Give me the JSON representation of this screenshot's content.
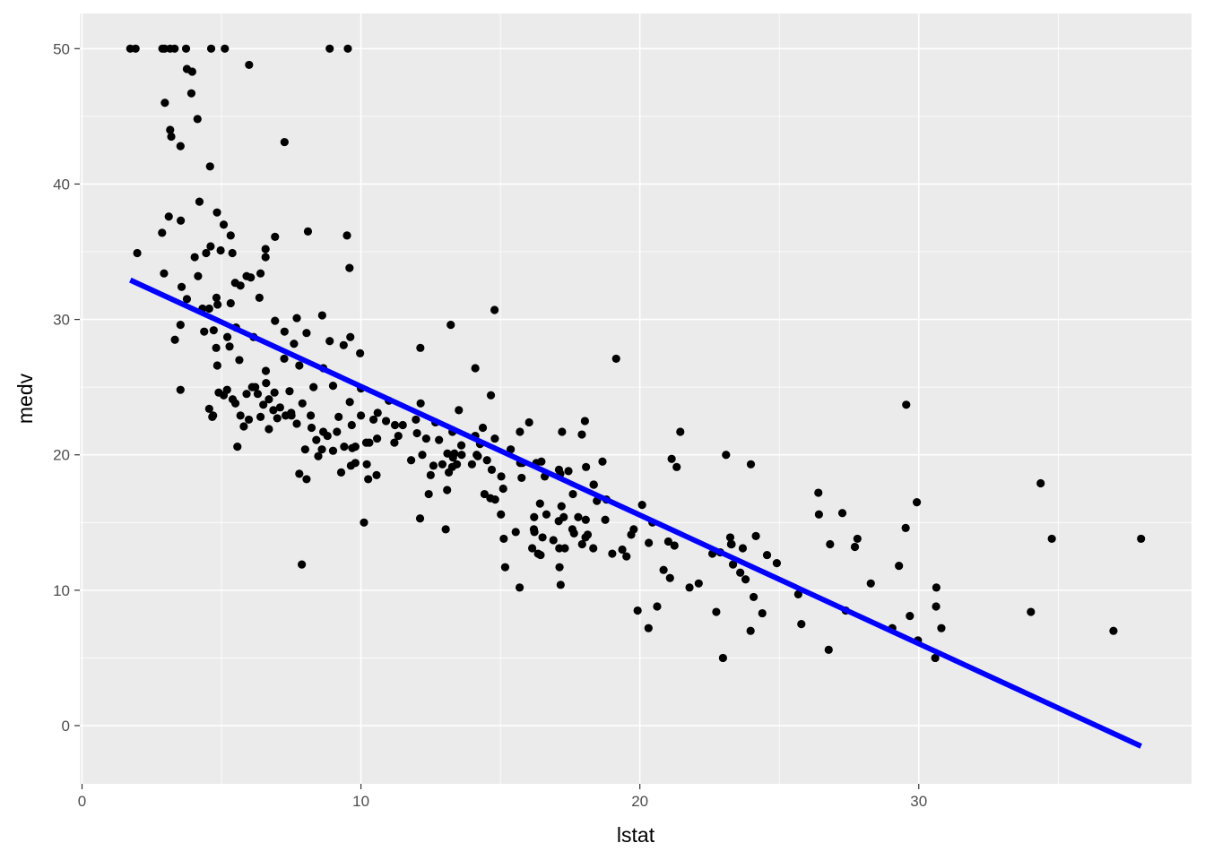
{
  "chart_data": {
    "type": "scatter",
    "x_label": "lstat",
    "y_label": "medv",
    "color": "#000000",
    "x": [
      1.73,
      1.92,
      2.88,
      2.96,
      3.16,
      3.32,
      3.73,
      4.63,
      5.12,
      8.88,
      9.53,
      5.99,
      3.76,
      3.95,
      3.92,
      2.97,
      4.14,
      3.16,
      3.2,
      3.53,
      7.26,
      4.59,
      4.21,
      4.84,
      3.11,
      3.54,
      5.08,
      2.87,
      5.33,
      6.92,
      8.1,
      9.5,
      4.61,
      4.97,
      6.58,
      1.98,
      4.45,
      5.39,
      6.58,
      4.04,
      9.59,
      2.94,
      4.16,
      5.9,
      6.4,
      6.05,
      5.68,
      5.49,
      3.57,
      6.36,
      3.76,
      4.82,
      4.56,
      5.33,
      4.86,
      4.32,
      8.61,
      14.79,
      13.22,
      6.92,
      7.7,
      3.53,
      5.52,
      4.38,
      6.15,
      7.26,
      8.05,
      4.72,
      3.33,
      9.62,
      12.13,
      5.21,
      9.97,
      7.6,
      4.81,
      5.29,
      8.88,
      9.38,
      5.64,
      7.25,
      14.1,
      4.85,
      6.59,
      7.79,
      8.65,
      19.15,
      3.53,
      4.67,
      5.5,
      5.98,
      4.56,
      5.08,
      5.68,
      5.57,
      6.21,
      6.86,
      7.44,
      7.51,
      8.23,
      7.79,
      8.05,
      7.88,
      8.47,
      8.65,
      9.29,
      9.64,
      9.8,
      9.69,
      9.14,
      9.67,
      10.11,
      10.19,
      10.26,
      10.56,
      10.21,
      10.45,
      10.58,
      11.22,
      11.34,
      11.97,
      12.01,
      12.14,
      12.12,
      12.34,
      12.43,
      12.6,
      12.67,
      12.92,
      13.04,
      13.09,
      13.15,
      13.27,
      13.28,
      13.35,
      13.44,
      13.51,
      13.61,
      13.98,
      14.1,
      14.15,
      14.19,
      14.27,
      14.37,
      14.43,
      14.52,
      14.64,
      14.66,
      14.69,
      14.8,
      14.81,
      15.02,
      15.03,
      15.1,
      15.12,
      15.17,
      15.37,
      15.55,
      15.69,
      15.7,
      15.71,
      15.76,
      15.79,
      16.03,
      16.14,
      16.2,
      16.21,
      16.22,
      16.29,
      16.35,
      16.42,
      16.44,
      16.47,
      16.51,
      16.59,
      16.65,
      16.9,
      17.09,
      17.1,
      17.11,
      17.12,
      17.15,
      17.16,
      17.19,
      17.21,
      17.27,
      17.31,
      17.44,
      17.58,
      17.6,
      17.64,
      17.79,
      17.92,
      17.93,
      18.03,
      18.05,
      18.06,
      18.07,
      18.13,
      18.33,
      18.34,
      18.35,
      18.46,
      18.66,
      18.76,
      18.8,
      19.01,
      19.37,
      19.52,
      19.69,
      19.78,
      19.92,
      20.08,
      20.31,
      20.32,
      20.45,
      20.62,
      20.85,
      21.02,
      21.08,
      21.14,
      21.24,
      21.32,
      21.45,
      21.78,
      22.11,
      22.6,
      22.74,
      22.88,
      22.98,
      23.09,
      23.24,
      23.27,
      23.29,
      23.34,
      23.6,
      23.69,
      23.79,
      23.97,
      23.98,
      24.08,
      24.16,
      24.39,
      24.56,
      24.91,
      25.68,
      25.79,
      26.4,
      26.42,
      26.77,
      26.82,
      27.26,
      27.38,
      27.71,
      27.8,
      28.28,
      29.05,
      29.29,
      29.53,
      29.55,
      29.68,
      29.93,
      29.97,
      30.59,
      30.62,
      30.63,
      30.81,
      34.02,
      34.37,
      34.77,
      36.98,
      37.97,
      5.9,
      6.1,
      6.3,
      6.5,
      6.6,
      6.7,
      6.9,
      7.1,
      7.3,
      7.5,
      7.7,
      7.9,
      8.2,
      8.4,
      8.6,
      8.8,
      9.0,
      9.2,
      9.4,
      9.6,
      9.8,
      10,
      10.3,
      10.6,
      10.9,
      11.2,
      11.5,
      11.8,
      12.2,
      12.5,
      12.8,
      13.1,
      13.3,
      13.6,
      6.4,
      6.7,
      5.8,
      7.0,
      8.0,
      8.3,
      9.0,
      10.0,
      11.0,
      5.2,
      5.4,
      4.9,
      4.7
    ],
    "values": [
      50,
      50,
      50,
      50,
      50,
      50,
      50,
      50,
      50,
      50,
      50,
      48.8,
      48.5,
      48.3,
      46.7,
      46,
      44.8,
      44,
      43.5,
      42.8,
      43.1,
      41.3,
      38.7,
      37.9,
      37.6,
      37.3,
      37,
      36.4,
      36.2,
      36.1,
      36.5,
      36.2,
      35.4,
      35.1,
      35.2,
      34.9,
      34.9,
      34.9,
      34.6,
      34.6,
      33.8,
      33.4,
      33.2,
      33.2,
      33.4,
      33.1,
      32.5,
      32.7,
      32.4,
      31.6,
      31.5,
      31.6,
      30.8,
      31.2,
      31.1,
      30.8,
      30.3,
      30.7,
      29.6,
      29.9,
      30.1,
      29.6,
      29.4,
      29.1,
      28.7,
      29.1,
      29,
      29.2,
      28.5,
      28.7,
      27.9,
      28.7,
      27.5,
      28.2,
      27.9,
      28,
      28.4,
      28.1,
      27,
      27.1,
      26.4,
      26.6,
      26.2,
      26.6,
      26.4,
      27.1,
      24.8,
      22.8,
      23.8,
      22.6,
      23.4,
      24.4,
      22.9,
      20.6,
      25,
      23.3,
      24.7,
      22.9,
      22,
      18.6,
      18.2,
      11.9,
      19.9,
      21.7,
      18.7,
      19.2,
      19.4,
      20.5,
      21.7,
      22.2,
      15,
      20.9,
      18.2,
      18.5,
      19.3,
      22.6,
      21.2,
      22.2,
      21.4,
      22.6,
      21.6,
      23.8,
      15.3,
      21.2,
      17.1,
      19.2,
      22.4,
      19.3,
      14.5,
      17.4,
      18.7,
      19.1,
      21.7,
      20.1,
      19.3,
      23.3,
      20,
      19.3,
      21.4,
      20,
      19.9,
      20.8,
      22,
      17.1,
      19.6,
      16.8,
      24.4,
      18.9,
      21.2,
      16.7,
      15.6,
      18.4,
      17.5,
      13.8,
      11.7,
      20.4,
      14.3,
      10.2,
      21.7,
      19.4,
      18.3,
      19.4,
      22.4,
      13.1,
      14.5,
      15.4,
      14.3,
      19.4,
      12.7,
      16.4,
      12.6,
      19.5,
      13.9,
      18.4,
      15.6,
      13.7,
      15.1,
      18.9,
      13.1,
      11.7,
      18.6,
      10.4,
      16.2,
      21.7,
      15.4,
      13.1,
      18.8,
      14.5,
      17.1,
      14.2,
      15.4,
      21.5,
      13.4,
      22.5,
      13.9,
      15.2,
      19.1,
      14.1,
      13.1,
      17.8,
      17.8,
      16.6,
      19.5,
      15.2,
      16.7,
      12.7,
      13,
      12.5,
      14.1,
      14.5,
      8.5,
      16.3,
      7.2,
      13.5,
      15,
      8.8,
      11.5,
      13.6,
      10.9,
      19.7,
      13.3,
      19.1,
      21.7,
      10.2,
      10.5,
      12.7,
      8.4,
      12.8,
      5,
      20,
      13.9,
      13.4,
      13.4,
      11.9,
      11.3,
      13.1,
      10.8,
      7,
      19.3,
      9.5,
      14,
      8.3,
      12.6,
      12,
      9.7,
      7.5,
      17.2,
      15.6,
      5.6,
      13.4,
      15.7,
      8.5,
      13.2,
      13.8,
      10.5,
      7.2,
      11.8,
      14.6,
      23.7,
      8.1,
      16.5,
      6.3,
      5,
      8.8,
      10.2,
      7.2,
      8.4,
      17.9,
      13.8,
      7,
      13.8,
      24.5,
      25,
      24.5,
      23.7,
      25.3,
      24.1,
      24.6,
      23.5,
      22.9,
      23.1,
      22.3,
      23.8,
      22.9,
      21.1,
      20.4,
      21.4,
      20.3,
      22.8,
      20.6,
      23.9,
      20.6,
      22.9,
      20.9,
      23.1,
      22.5,
      20.9,
      22.2,
      19.6,
      20,
      18.5,
      21.1,
      20.1,
      19.8,
      20.7,
      22.8,
      21.9,
      22.1,
      22.7,
      20.4,
      25,
      25.1,
      24.9,
      24,
      24.8,
      24.1,
      24.6,
      22.9
    ],
    "fit": {
      "x": [
        1.73,
        37.97
      ],
      "values": [
        32.91,
        -1.52
      ],
      "color": "#0000ff"
    },
    "xlim": [
      -0.08,
      39.78
    ],
    "ylim": [
      -4.3,
      52.6
    ],
    "xticks": [
      0,
      10,
      20,
      30
    ],
    "yticks": [
      0,
      10,
      20,
      30,
      40,
      50
    ],
    "grid": true
  }
}
